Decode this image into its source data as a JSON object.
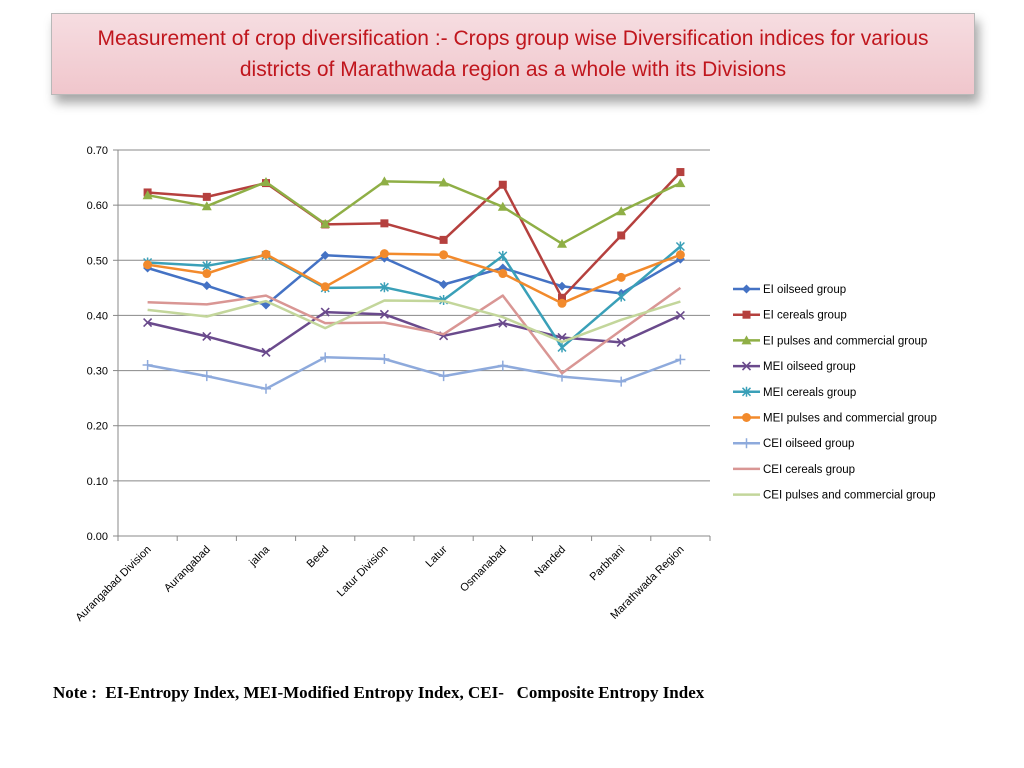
{
  "title": "Measurement of crop diversification :- Crops group wise Diversification indices for various districts of Marathwada region as a whole with its Divisions",
  "note": "Note :  EI-Entropy Index, MEI-Modified Entropy Index, CEI-   Composite Entropy Index",
  "chart_data": {
    "type": "line",
    "title": "",
    "xlabel": "",
    "ylabel": "",
    "ylim": [
      0,
      0.7
    ],
    "yticks": [
      "0.00",
      "0.10",
      "0.20",
      "0.30",
      "0.40",
      "0.50",
      "0.60",
      "0.70"
    ],
    "grid": "horizontal",
    "legend_position": "right",
    "categories": [
      "Aurangabad Division",
      "Aurangabad",
      "jalna",
      "Beed",
      "Latur Division",
      "Latur",
      "Osmanabad",
      "Nanded",
      "Parbhani",
      "Marathwada Region"
    ],
    "series": [
      {
        "name": "EI oilseed group",
        "color": "#4472c4",
        "marker": "diamond",
        "values": [
          0.486,
          0.454,
          0.419,
          0.509,
          0.504,
          0.456,
          0.486,
          0.453,
          0.44,
          0.502
        ]
      },
      {
        "name": "EI cereals group",
        "color": "#b5403e",
        "marker": "square",
        "values": [
          0.623,
          0.615,
          0.64,
          0.565,
          0.567,
          0.537,
          0.637,
          0.432,
          0.545,
          0.66
        ]
      },
      {
        "name": "EI pulses and commercial group",
        "color": "#8faf46",
        "marker": "triangle",
        "values": [
          0.618,
          0.598,
          0.642,
          0.566,
          0.643,
          0.641,
          0.597,
          0.53,
          0.589,
          0.64
        ]
      },
      {
        "name": "MEI oilseed group",
        "color": "#6a4a8c",
        "marker": "x",
        "values": [
          0.387,
          0.362,
          0.333,
          0.406,
          0.402,
          0.363,
          0.386,
          0.36,
          0.351,
          0.4
        ]
      },
      {
        "name": "MEI cereals group",
        "color": "#3aa0b8",
        "marker": "star",
        "values": [
          0.496,
          0.49,
          0.509,
          0.45,
          0.451,
          0.428,
          0.508,
          0.342,
          0.434,
          0.525
        ]
      },
      {
        "name": "MEI pulses and commercial group",
        "color": "#f28a2c",
        "marker": "circle",
        "values": [
          0.492,
          0.476,
          0.511,
          0.452,
          0.512,
          0.51,
          0.476,
          0.422,
          0.469,
          0.51
        ]
      },
      {
        "name": "CEI oilseed group",
        "color": "#8eaadc",
        "marker": "plus",
        "values": [
          0.31,
          0.29,
          0.267,
          0.324,
          0.321,
          0.29,
          0.309,
          0.289,
          0.28,
          0.32
        ]
      },
      {
        "name": "CEI cereals group",
        "color": "#d99694",
        "marker": "none",
        "values": [
          0.424,
          0.42,
          0.436,
          0.386,
          0.387,
          0.366,
          0.436,
          0.295,
          0.373,
          0.45
        ]
      },
      {
        "name": "CEI pulses and commercial group",
        "color": "#c3d69b",
        "marker": "none",
        "values": [
          0.41,
          0.398,
          0.426,
          0.377,
          0.427,
          0.426,
          0.397,
          0.352,
          0.392,
          0.425
        ]
      }
    ]
  }
}
